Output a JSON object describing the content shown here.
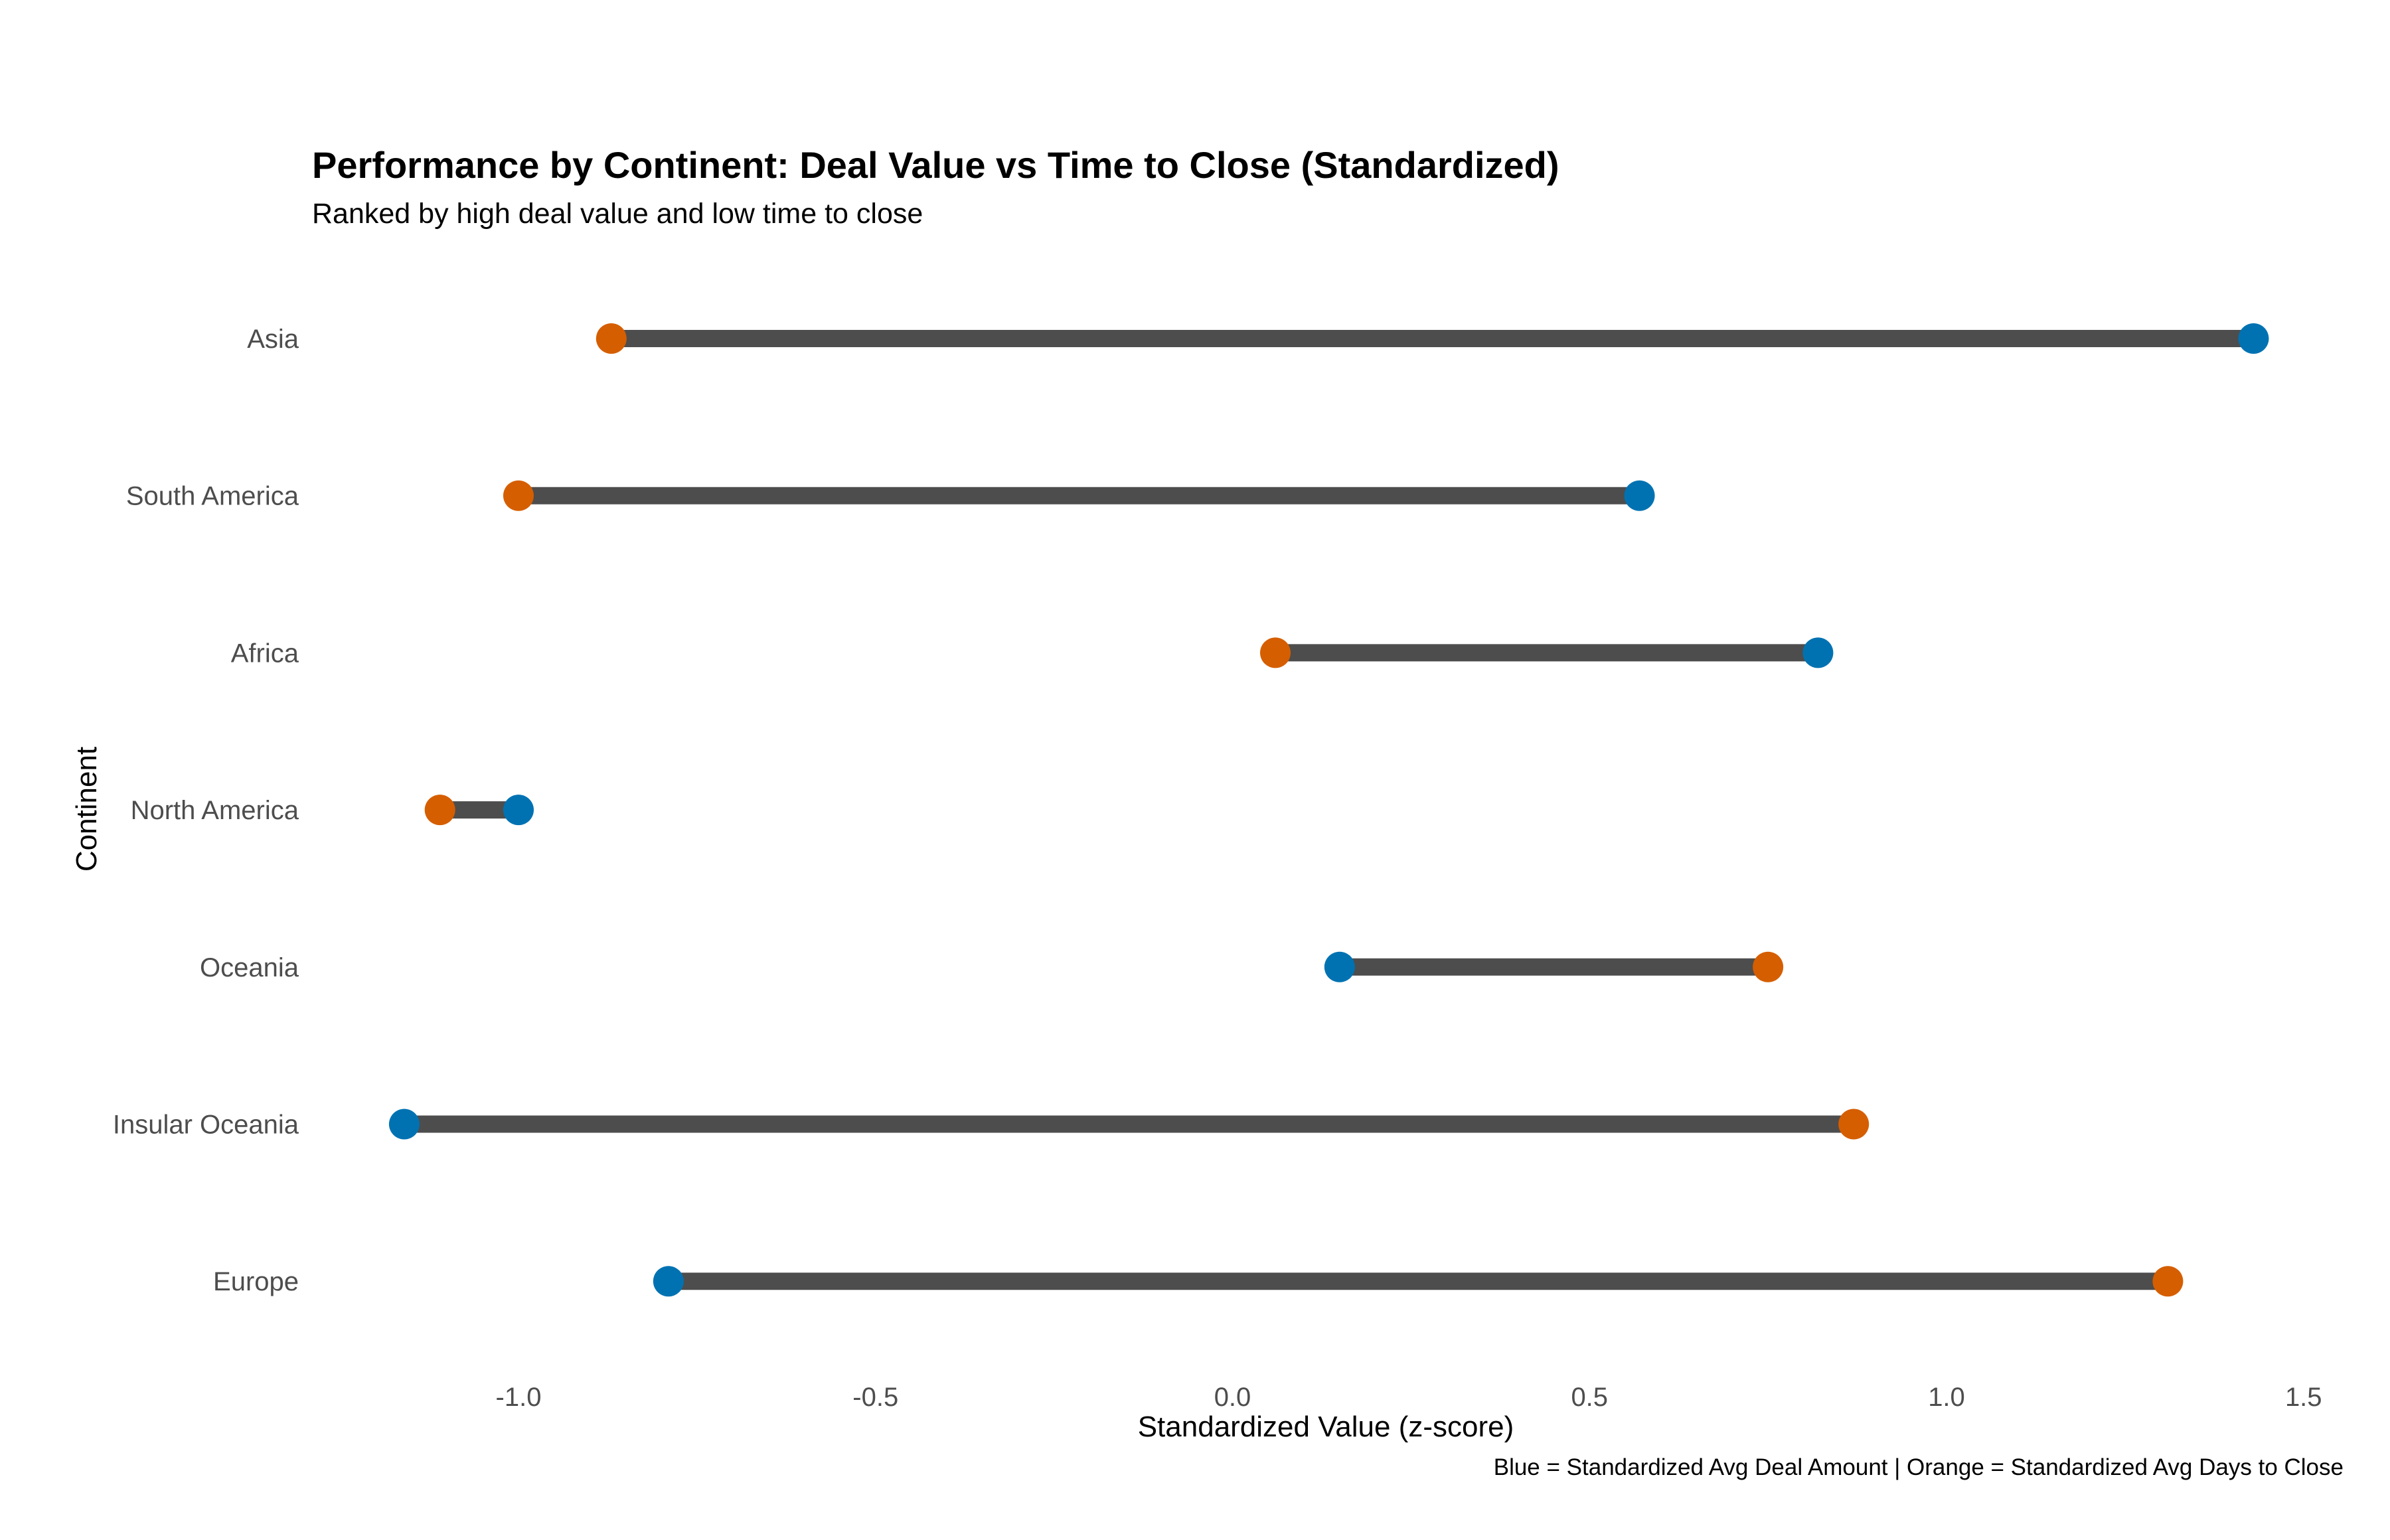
{
  "chart_data": {
    "type": "dumbbell",
    "title": "Performance by Continent: Deal Value vs Time to Close (Standardized)",
    "subtitle": "Ranked by high deal value and low time to close",
    "xlabel": "Standardized Value (z-score)",
    "ylabel": "Continent",
    "caption": "Blue = Standardized Avg Deal Amount | Orange = Standardized Avg Days to Close",
    "xlim": [
      -1.15,
      1.5
    ],
    "xticks": [
      -1.0,
      -0.5,
      0.0,
      0.5,
      1.0,
      1.5
    ],
    "xtick_labels": [
      "-1.0",
      "-0.5",
      "0.0",
      "0.5",
      "1.0",
      "1.5"
    ],
    "grid": false,
    "categories": [
      "Asia",
      "South America",
      "Africa",
      "North America",
      "Oceania",
      "Insular Oceania",
      "Europe"
    ],
    "series": [
      {
        "key": "deal_amount",
        "color": "#0072B2",
        "values": [
          1.43,
          0.57,
          0.82,
          -1.0,
          0.15,
          -1.16,
          -0.79
        ]
      },
      {
        "key": "days_to_close",
        "color": "#D55E00",
        "values": [
          -0.87,
          -1.0,
          0.06,
          -1.11,
          0.75,
          0.87,
          1.31
        ]
      }
    ],
    "segment_color": "#4d4d4d"
  }
}
